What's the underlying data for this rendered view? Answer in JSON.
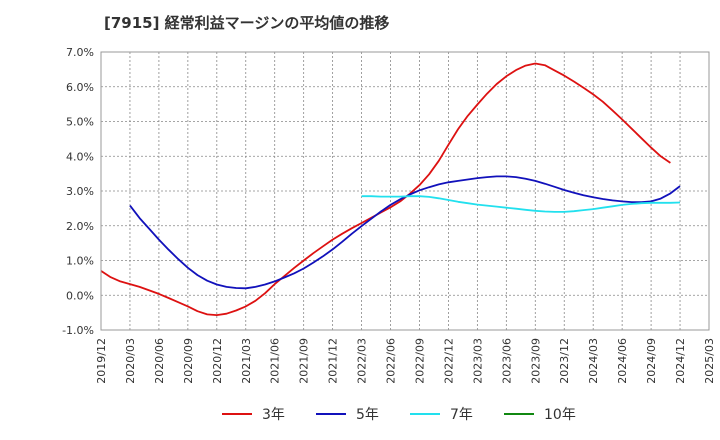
{
  "title": "[7915]  経常利益マージンの平均値の推移",
  "chart_data": {
    "type": "line",
    "title": "[7915]  経常利益マージンの平均値の推移",
    "xlabel": "",
    "ylabel": "",
    "ylim": [
      -1.0,
      7.0
    ],
    "yticks": [
      "7.0%",
      "6.0%",
      "5.0%",
      "4.0%",
      "3.0%",
      "2.0%",
      "1.0%",
      "0.0%",
      "-1.0%"
    ],
    "x_ticks": [
      "2019/12",
      "2020/03",
      "2020/06",
      "2020/09",
      "2020/12",
      "2021/03",
      "2021/06",
      "2021/09",
      "2021/12",
      "2022/03",
      "2022/06",
      "2022/09",
      "2022/12",
      "2023/03",
      "2023/06",
      "2023/09",
      "2023/12",
      "2024/03",
      "2024/06",
      "2024/09",
      "2024/12",
      "2025/03"
    ],
    "grid": true,
    "legend_position": "bottom",
    "series": [
      {
        "name": "3年",
        "color": "#dd1111",
        "points": [
          [
            "2019/12",
            0.7
          ],
          [
            "2020/01",
            0.52
          ],
          [
            "2020/02",
            0.4
          ],
          [
            "2020/03",
            0.32
          ],
          [
            "2020/04",
            0.24
          ],
          [
            "2020/05",
            0.14
          ],
          [
            "2020/06",
            0.04
          ],
          [
            "2020/07",
            -0.08
          ],
          [
            "2020/08",
            -0.2
          ],
          [
            "2020/09",
            -0.32
          ],
          [
            "2020/10",
            -0.46
          ],
          [
            "2020/11",
            -0.55
          ],
          [
            "2020/12",
            -0.57
          ],
          [
            "2021/01",
            -0.53
          ],
          [
            "2021/02",
            -0.44
          ],
          [
            "2021/03",
            -0.32
          ],
          [
            "2021/04",
            -0.16
          ],
          [
            "2021/05",
            0.06
          ],
          [
            "2021/06",
            0.32
          ],
          [
            "2021/07",
            0.55
          ],
          [
            "2021/08",
            0.78
          ],
          [
            "2021/09",
            1.0
          ],
          [
            "2021/10",
            1.21
          ],
          [
            "2021/11",
            1.41
          ],
          [
            "2021/12",
            1.6
          ],
          [
            "2022/01",
            1.77
          ],
          [
            "2022/02",
            1.93
          ],
          [
            "2022/03",
            2.08
          ],
          [
            "2022/04",
            2.23
          ],
          [
            "2022/05",
            2.38
          ],
          [
            "2022/06",
            2.53
          ],
          [
            "2022/07",
            2.7
          ],
          [
            "2022/08",
            2.92
          ],
          [
            "2022/09",
            3.17
          ],
          [
            "2022/10",
            3.48
          ],
          [
            "2022/11",
            3.87
          ],
          [
            "2022/12",
            4.33
          ],
          [
            "2023/01",
            4.78
          ],
          [
            "2023/02",
            5.16
          ],
          [
            "2023/03",
            5.49
          ],
          [
            "2023/04",
            5.8
          ],
          [
            "2023/05",
            6.08
          ],
          [
            "2023/06",
            6.3
          ],
          [
            "2023/07",
            6.48
          ],
          [
            "2023/08",
            6.61
          ],
          [
            "2023/09",
            6.67
          ],
          [
            "2023/10",
            6.62
          ],
          [
            "2023/11",
            6.47
          ],
          [
            "2023/12",
            6.32
          ],
          [
            "2024/01",
            6.15
          ],
          [
            "2024/02",
            5.97
          ],
          [
            "2024/03",
            5.78
          ],
          [
            "2024/04",
            5.57
          ],
          [
            "2024/05",
            5.32
          ],
          [
            "2024/06",
            5.06
          ],
          [
            "2024/07",
            4.79
          ],
          [
            "2024/08",
            4.52
          ],
          [
            "2024/09",
            4.25
          ],
          [
            "2024/10",
            4.0
          ],
          [
            "2024/11",
            3.81
          ]
        ]
      },
      {
        "name": "5年",
        "color": "#1111bb",
        "points": [
          [
            "2020/03",
            2.58
          ],
          [
            "2020/04",
            2.22
          ],
          [
            "2020/05",
            1.91
          ],
          [
            "2020/06",
            1.6
          ],
          [
            "2020/07",
            1.31
          ],
          [
            "2020/08",
            1.04
          ],
          [
            "2020/09",
            0.79
          ],
          [
            "2020/10",
            0.58
          ],
          [
            "2020/11",
            0.42
          ],
          [
            "2020/12",
            0.31
          ],
          [
            "2021/01",
            0.24
          ],
          [
            "2021/02",
            0.21
          ],
          [
            "2021/03",
            0.2
          ],
          [
            "2021/04",
            0.24
          ],
          [
            "2021/05",
            0.31
          ],
          [
            "2021/06",
            0.4
          ],
          [
            "2021/07",
            0.51
          ],
          [
            "2021/08",
            0.63
          ],
          [
            "2021/09",
            0.77
          ],
          [
            "2021/10",
            0.94
          ],
          [
            "2021/11",
            1.12
          ],
          [
            "2021/12",
            1.32
          ],
          [
            "2022/01",
            1.54
          ],
          [
            "2022/02",
            1.77
          ],
          [
            "2022/03",
            1.99
          ],
          [
            "2022/04",
            2.2
          ],
          [
            "2022/05",
            2.41
          ],
          [
            "2022/06",
            2.6
          ],
          [
            "2022/07",
            2.76
          ],
          [
            "2022/08",
            2.9
          ],
          [
            "2022/09",
            3.02
          ],
          [
            "2022/10",
            3.11
          ],
          [
            "2022/11",
            3.19
          ],
          [
            "2022/12",
            3.25
          ],
          [
            "2023/01",
            3.29
          ],
          [
            "2023/02",
            3.33
          ],
          [
            "2023/03",
            3.37
          ],
          [
            "2023/04",
            3.4
          ],
          [
            "2023/05",
            3.42
          ],
          [
            "2023/06",
            3.42
          ],
          [
            "2023/07",
            3.4
          ],
          [
            "2023/08",
            3.35
          ],
          [
            "2023/09",
            3.29
          ],
          [
            "2023/10",
            3.21
          ],
          [
            "2023/11",
            3.12
          ],
          [
            "2023/12",
            3.03
          ],
          [
            "2024/01",
            2.95
          ],
          [
            "2024/02",
            2.88
          ],
          [
            "2024/03",
            2.82
          ],
          [
            "2024/04",
            2.77
          ],
          [
            "2024/05",
            2.73
          ],
          [
            "2024/06",
            2.7
          ],
          [
            "2024/07",
            2.68
          ],
          [
            "2024/08",
            2.68
          ],
          [
            "2024/09",
            2.7
          ],
          [
            "2024/10",
            2.78
          ],
          [
            "2024/11",
            2.93
          ],
          [
            "2024/12",
            3.14
          ]
        ]
      },
      {
        "name": "7年",
        "color": "#22e0ee",
        "points": [
          [
            "2022/03",
            2.85
          ],
          [
            "2022/04",
            2.85
          ],
          [
            "2022/05",
            2.84
          ],
          [
            "2022/06",
            2.84
          ],
          [
            "2022/07",
            2.84
          ],
          [
            "2022/08",
            2.85
          ],
          [
            "2022/09",
            2.85
          ],
          [
            "2022/10",
            2.83
          ],
          [
            "2022/11",
            2.79
          ],
          [
            "2022/12",
            2.74
          ],
          [
            "2023/01",
            2.69
          ],
          [
            "2023/02",
            2.65
          ],
          [
            "2023/03",
            2.61
          ],
          [
            "2023/04",
            2.58
          ],
          [
            "2023/05",
            2.55
          ],
          [
            "2023/06",
            2.52
          ],
          [
            "2023/07",
            2.49
          ],
          [
            "2023/08",
            2.46
          ],
          [
            "2023/09",
            2.43
          ],
          [
            "2023/10",
            2.41
          ],
          [
            "2023/11",
            2.4
          ],
          [
            "2023/12",
            2.4
          ],
          [
            "2024/01",
            2.42
          ],
          [
            "2024/02",
            2.45
          ],
          [
            "2024/03",
            2.48
          ],
          [
            "2024/04",
            2.52
          ],
          [
            "2024/05",
            2.56
          ],
          [
            "2024/06",
            2.6
          ],
          [
            "2024/07",
            2.63
          ],
          [
            "2024/08",
            2.65
          ],
          [
            "2024/09",
            2.66
          ],
          [
            "2024/10",
            2.66
          ],
          [
            "2024/11",
            2.66
          ],
          [
            "2024/12",
            2.67
          ]
        ]
      },
      {
        "name": "10年",
        "color": "#118811",
        "points": []
      }
    ]
  }
}
